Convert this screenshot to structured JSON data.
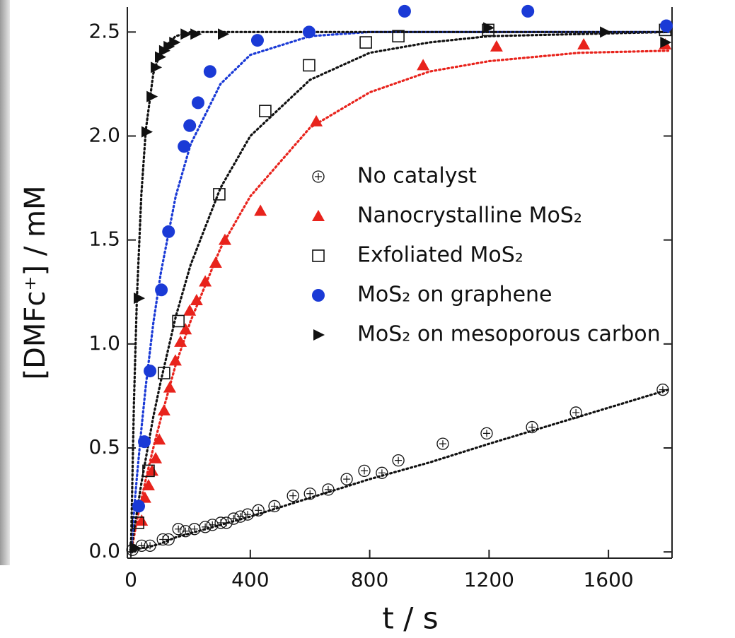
{
  "chart_data": {
    "type": "scatter",
    "xlabel": "t / s",
    "ylabel": "[DMFc⁺] / mM",
    "xlim": [
      -12,
      1813
    ],
    "ylim": [
      -0.03,
      2.62
    ],
    "xticks": [
      0,
      400,
      800,
      1200,
      1600
    ],
    "yticks": [
      {
        "value": 0,
        "label": "0.0"
      },
      0.5,
      {
        "value": 1,
        "label": "1.0"
      },
      1.5,
      {
        "value": 2,
        "label": "2.0"
      },
      2.5
    ],
    "fit_x": [
      0,
      10,
      20,
      35,
      50,
      75,
      100,
      150,
      200,
      300,
      400,
      600,
      800,
      1000,
      1200,
      1500,
      1800
    ],
    "series": [
      {
        "name": "No catalyst",
        "color": "#111111",
        "marker": "circle-plus",
        "x": [
          5,
          36,
          64,
          107,
          126,
          159,
          183,
          213,
          249,
          273,
          301,
          320,
          344,
          367,
          391,
          427,
          481,
          543,
          600,
          661,
          723,
          782,
          841,
          896,
          1045,
          1192,
          1344,
          1491,
          1782
        ],
        "values": [
          0.01,
          0.03,
          0.03,
          0.06,
          0.06,
          0.11,
          0.1,
          0.11,
          0.12,
          0.13,
          0.14,
          0.14,
          0.16,
          0.17,
          0.18,
          0.2,
          0.22,
          0.27,
          0.28,
          0.3,
          0.35,
          0.39,
          0.38,
          0.44,
          0.52,
          0.57,
          0.6,
          0.67,
          0.78
        ],
        "fit": [
          0,
          0,
          0.01,
          0.02,
          0.02,
          0.03,
          0.04,
          0.07,
          0.09,
          0.13,
          0.17,
          0.26,
          0.35,
          0.43,
          0.52,
          0.65,
          0.78
        ]
      },
      {
        "name": "Nanocrystalline MoS₂",
        "color": "#e8231c",
        "marker": "triangle",
        "x": [
          36,
          47,
          59,
          71,
          83,
          95,
          111,
          130,
          149,
          166,
          183,
          197,
          220,
          249,
          284,
          315,
          434,
          621,
          979,
          1225,
          1517,
          1790
        ],
        "values": [
          0.15,
          0.26,
          0.32,
          0.39,
          0.45,
          0.54,
          0.68,
          0.79,
          0.92,
          1.01,
          1.07,
          1.16,
          1.21,
          1.3,
          1.39,
          1.5,
          1.64,
          2.07,
          2.34,
          2.43,
          2.44,
          2.44
        ],
        "fit": [
          0,
          0.07,
          0.15,
          0.25,
          0.35,
          0.5,
          0.64,
          0.9,
          1.11,
          1.46,
          1.71,
          2.04,
          2.21,
          2.31,
          2.36,
          2.4,
          2.41
        ]
      },
      {
        "name": "Exfoliated MoS₂",
        "color": "#111111",
        "marker": "square",
        "x": [
          24,
          59,
          111,
          159,
          296,
          450,
          597,
          787,
          896,
          1197,
          1790
        ],
        "values": [
          0.14,
          0.39,
          0.86,
          1.11,
          1.72,
          2.12,
          2.34,
          2.45,
          2.48,
          2.51,
          2.51
        ],
        "fit": [
          0,
          0.1,
          0.19,
          0.33,
          0.45,
          0.65,
          0.82,
          1.13,
          1.38,
          1.75,
          2,
          2.27,
          2.4,
          2.45,
          2.48,
          2.49,
          2.5
        ]
      },
      {
        "name": "MoS₂ on graphene",
        "color": "#1a3ad6",
        "marker": "circle",
        "x": [
          26,
          45,
          64,
          102,
          126,
          178,
          197,
          225,
          265,
          424,
          597,
          917,
          1330,
          1794
        ],
        "values": [
          0.22,
          0.53,
          0.87,
          1.26,
          1.54,
          1.95,
          2.05,
          2.16,
          2.31,
          2.46,
          2.5,
          2.6,
          2.6,
          2.53
        ],
        "fit": [
          0,
          0.19,
          0.36,
          0.59,
          0.8,
          1.1,
          1.34,
          1.71,
          1.96,
          2.25,
          2.39,
          2.48,
          2.5,
          2.5,
          2.5,
          2.5,
          2.5
        ]
      },
      {
        "name": "MoS₂ on mesoporous carbon",
        "color": "#111111",
        "marker": "triangle-right",
        "x": [
          12,
          26,
          52,
          69,
          83,
          97,
          111,
          126,
          145,
          183,
          216,
          308,
          1197,
          1588,
          1790
        ],
        "values": [
          0.02,
          1.22,
          2.02,
          2.19,
          2.33,
          2.38,
          2.41,
          2.43,
          2.45,
          2.49,
          2.49,
          2.49,
          2.52,
          2.5,
          2.45
        ],
        "fit": [
          0,
          0.71,
          1.22,
          1.72,
          2.03,
          2.3,
          2.41,
          2.48,
          2.5,
          2.5,
          2.5,
          2.5,
          2.5,
          2.5,
          2.5,
          2.5,
          2.5
        ]
      }
    ]
  }
}
